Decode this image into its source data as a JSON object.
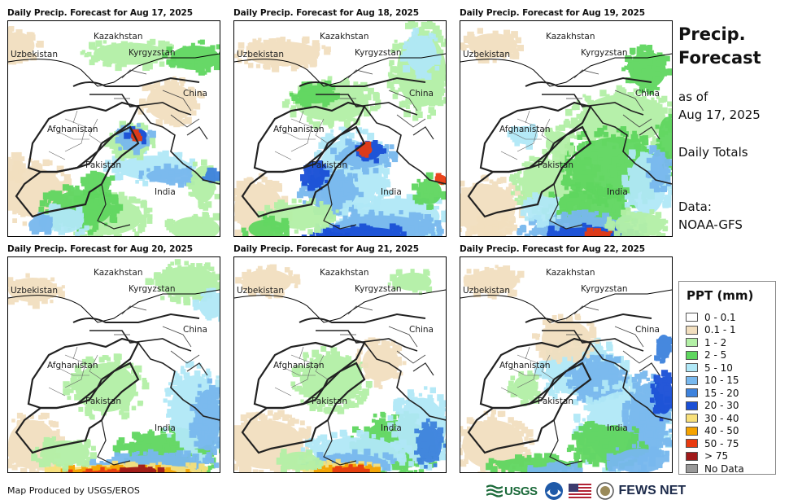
{
  "panels": [
    {
      "title": "Daily Precip. Forecast for Aug 17, 2025",
      "scheme": "a"
    },
    {
      "title": "Daily Precip. Forecast for Aug 18, 2025",
      "scheme": "b"
    },
    {
      "title": "Daily Precip. Forecast for Aug 19, 2025",
      "scheme": "c"
    },
    {
      "title": "Daily Precip. Forecast for Aug 20, 2025",
      "scheme": "d"
    },
    {
      "title": "Daily Precip. Forecast for Aug 21, 2025",
      "scheme": "e"
    },
    {
      "title": "Daily Precip. Forecast for Aug 22, 2025",
      "scheme": "f"
    }
  ],
  "map_labels": {
    "kazakhstan": "Kazakhstan",
    "uzbekistan": "Uzbekistan",
    "kyrgyzstan": "Kyrgyzstan",
    "china": "China",
    "afghanistan": "Afghanistan",
    "pakistan": "Pakistan",
    "india": "India"
  },
  "side": {
    "title_line1": "Precip.",
    "title_line2": "Forecast",
    "asof_line1": "as of",
    "asof_line2": "Aug 17, 2025",
    "totals": "Daily Totals",
    "data_line1": "Data:",
    "data_line2": "NOAA-GFS"
  },
  "legend": {
    "title": "PPT (mm)",
    "items": [
      {
        "label": "0 - 0.1",
        "color": "#ffffff"
      },
      {
        "label": "0.1 - 1",
        "color": "#f2dfbf"
      },
      {
        "label": "1 - 2",
        "color": "#b3f0a6"
      },
      {
        "label": "2 - 5",
        "color": "#5fd65f"
      },
      {
        "label": "5 - 10",
        "color": "#b0e8f7"
      },
      {
        "label": "10 - 15",
        "color": "#78b8ee"
      },
      {
        "label": "15 - 20",
        "color": "#3d82dd"
      },
      {
        "label": "20 - 30",
        "color": "#1a4fd6"
      },
      {
        "label": "30 - 40",
        "color": "#f8e07a"
      },
      {
        "label": "40 - 50",
        "color": "#f5a300"
      },
      {
        "label": "50 - 75",
        "color": "#e83a10"
      },
      {
        "label": "> 75",
        "color": "#a0191a"
      },
      {
        "label": "No Data",
        "color": "#999999"
      }
    ]
  },
  "footer": {
    "credit": "Map Produced by USGS/EROS",
    "usgs": "USGS",
    "fews": "FEWS NET"
  }
}
